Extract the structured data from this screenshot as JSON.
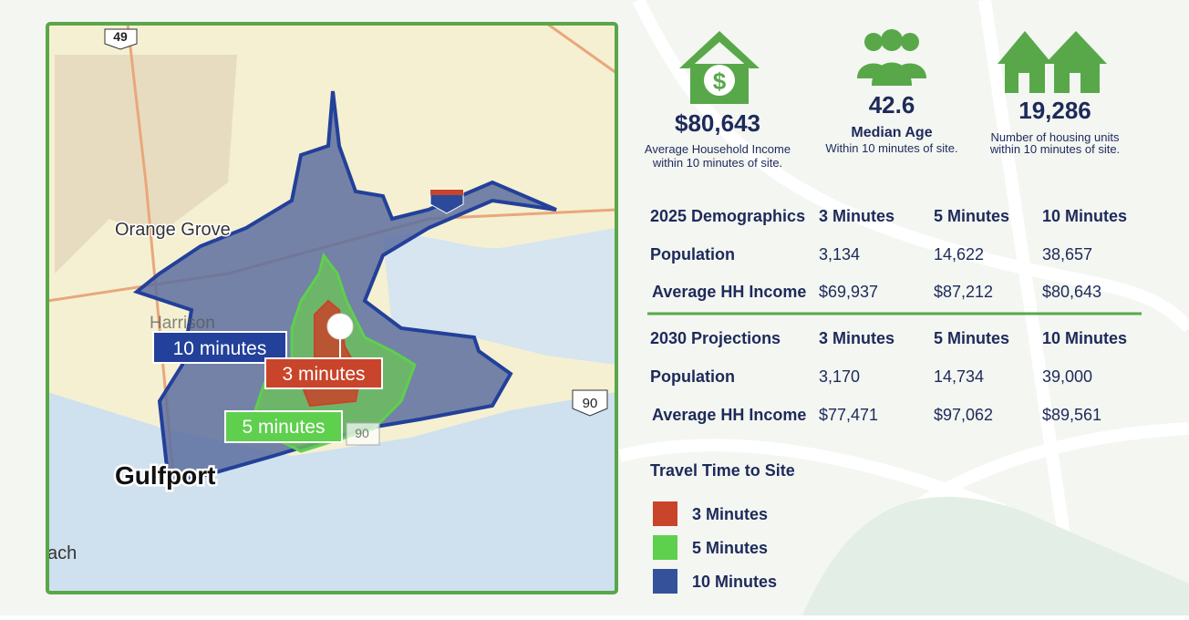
{
  "map": {
    "labels": {
      "highway_49": "49",
      "highway_90_east": "90",
      "highway_90_center": "90",
      "orange_grove": "Orange Grove",
      "harrison": "Harrison",
      "ten_minutes": "10 minutes",
      "three_minutes": "3 minutes",
      "five_minutes": "5 minutes",
      "gulfport": "Gulfport",
      "beach": "ach"
    }
  },
  "stats": [
    {
      "value": "$80,643",
      "label": "Average Household Income",
      "note": "within 10 minutes of site."
    },
    {
      "value": "42.6",
      "label": "Median Age",
      "note": "Within 10 minutes of site."
    },
    {
      "value": "19,286",
      "label": "Number of housing units",
      "note": "within 10 minutes of site."
    }
  ],
  "tables": [
    {
      "header": [
        "2025 Demographics",
        "3 Minutes",
        "5 Minutes",
        "10 Minutes"
      ],
      "rows": [
        [
          "Population",
          "3,134",
          "14,622",
          "38,657"
        ],
        [
          "Average HH Income",
          "$69,937",
          "$87,212",
          "$80,643"
        ]
      ]
    },
    {
      "header": [
        "2030 Projections",
        "3 Minutes",
        "5 Minutes",
        "10 Minutes"
      ],
      "rows": [
        [
          "Population",
          "3,170",
          "14,734",
          "39,000"
        ],
        [
          "Average HH Income",
          "$77,471",
          "$97,062",
          "$89,561"
        ]
      ]
    }
  ],
  "legend": {
    "title": "Travel Time to Site",
    "items": [
      {
        "label": "3 Minutes",
        "color": "#c8442a"
      },
      {
        "label": "5 Minutes",
        "color": "#5fcf4e"
      },
      {
        "label": "10 Minutes",
        "color": "#34519a"
      }
    ]
  }
}
